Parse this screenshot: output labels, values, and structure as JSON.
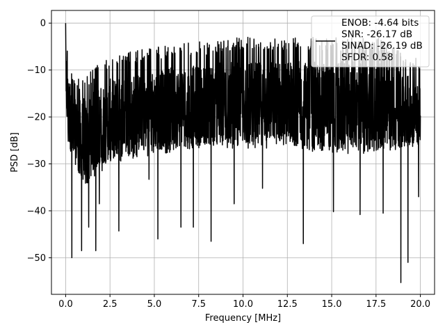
{
  "chart_data": {
    "type": "line",
    "title": "",
    "xlabel": "Frequency [MHz]",
    "ylabel": "PSD [dB]",
    "xlim": [
      -0.8,
      20.8
    ],
    "ylim": [
      -57.8,
      2.7
    ],
    "grid": true,
    "xticks": [
      0.0,
      2.5,
      5.0,
      7.5,
      10.0,
      12.5,
      15.0,
      17.5,
      20.0
    ],
    "xtick_labels": [
      "0.0",
      "2.5",
      "5.0",
      "7.5",
      "10.0",
      "12.5",
      "15.0",
      "17.5",
      "20.0"
    ],
    "yticks": [
      0,
      -10,
      -20,
      -30,
      -40,
      -50
    ],
    "ytick_labels": [
      "0",
      "−10",
      "−20",
      "−30",
      "−40",
      "−50"
    ],
    "legend": {
      "placement": "top-right",
      "lines": [
        "ENOB: -4.64 bits",
        "SNR: -26.17 dB",
        "SINAD: -26.19 dB",
        "SFDR: 0.58"
      ]
    },
    "series": [
      {
        "color": "#000000",
        "x_range": [
          0.0,
          20.0
        ],
        "envelope_x": [
          0.0,
          0.1,
          0.5,
          1.0,
          2.5,
          5.0,
          7.5,
          10.0,
          12.5,
          15.0,
          17.5,
          20.0
        ],
        "envelope_max": [
          0.0,
          -5,
          -12,
          -11,
          -7,
          -5,
          -4,
          -3,
          -3,
          -3,
          -3,
          -8
        ],
        "envelope_min": [
          -15,
          -26,
          -30,
          -35,
          -30,
          -28,
          -27,
          -27,
          -27,
          -28,
          -28,
          -26
        ],
        "dips": [
          {
            "x": 0.35,
            "y": -50.0
          },
          {
            "x": 0.9,
            "y": -48.5
          },
          {
            "x": 1.3,
            "y": -43.5
          },
          {
            "x": 1.7,
            "y": -48.5
          },
          {
            "x": 1.9,
            "y": -38.5
          },
          {
            "x": 3.0,
            "y": -44.3
          },
          {
            "x": 5.2,
            "y": -46.0
          },
          {
            "x": 6.5,
            "y": -43.5
          },
          {
            "x": 7.2,
            "y": -43.5
          },
          {
            "x": 8.2,
            "y": -46.5
          },
          {
            "x": 9.5,
            "y": -38.5
          },
          {
            "x": 13.4,
            "y": -47.0
          },
          {
            "x": 15.1,
            "y": -40.2
          },
          {
            "x": 16.6,
            "y": -40.8
          },
          {
            "x": 17.9,
            "y": -40.5
          },
          {
            "x": 18.9,
            "y": -55.3
          },
          {
            "x": 19.3,
            "y": -51.0
          },
          {
            "x": 19.9,
            "y": -37.0
          },
          {
            "x": 4.7,
            "y": -33.3
          },
          {
            "x": 11.1,
            "y": -35.2
          }
        ]
      }
    ]
  }
}
